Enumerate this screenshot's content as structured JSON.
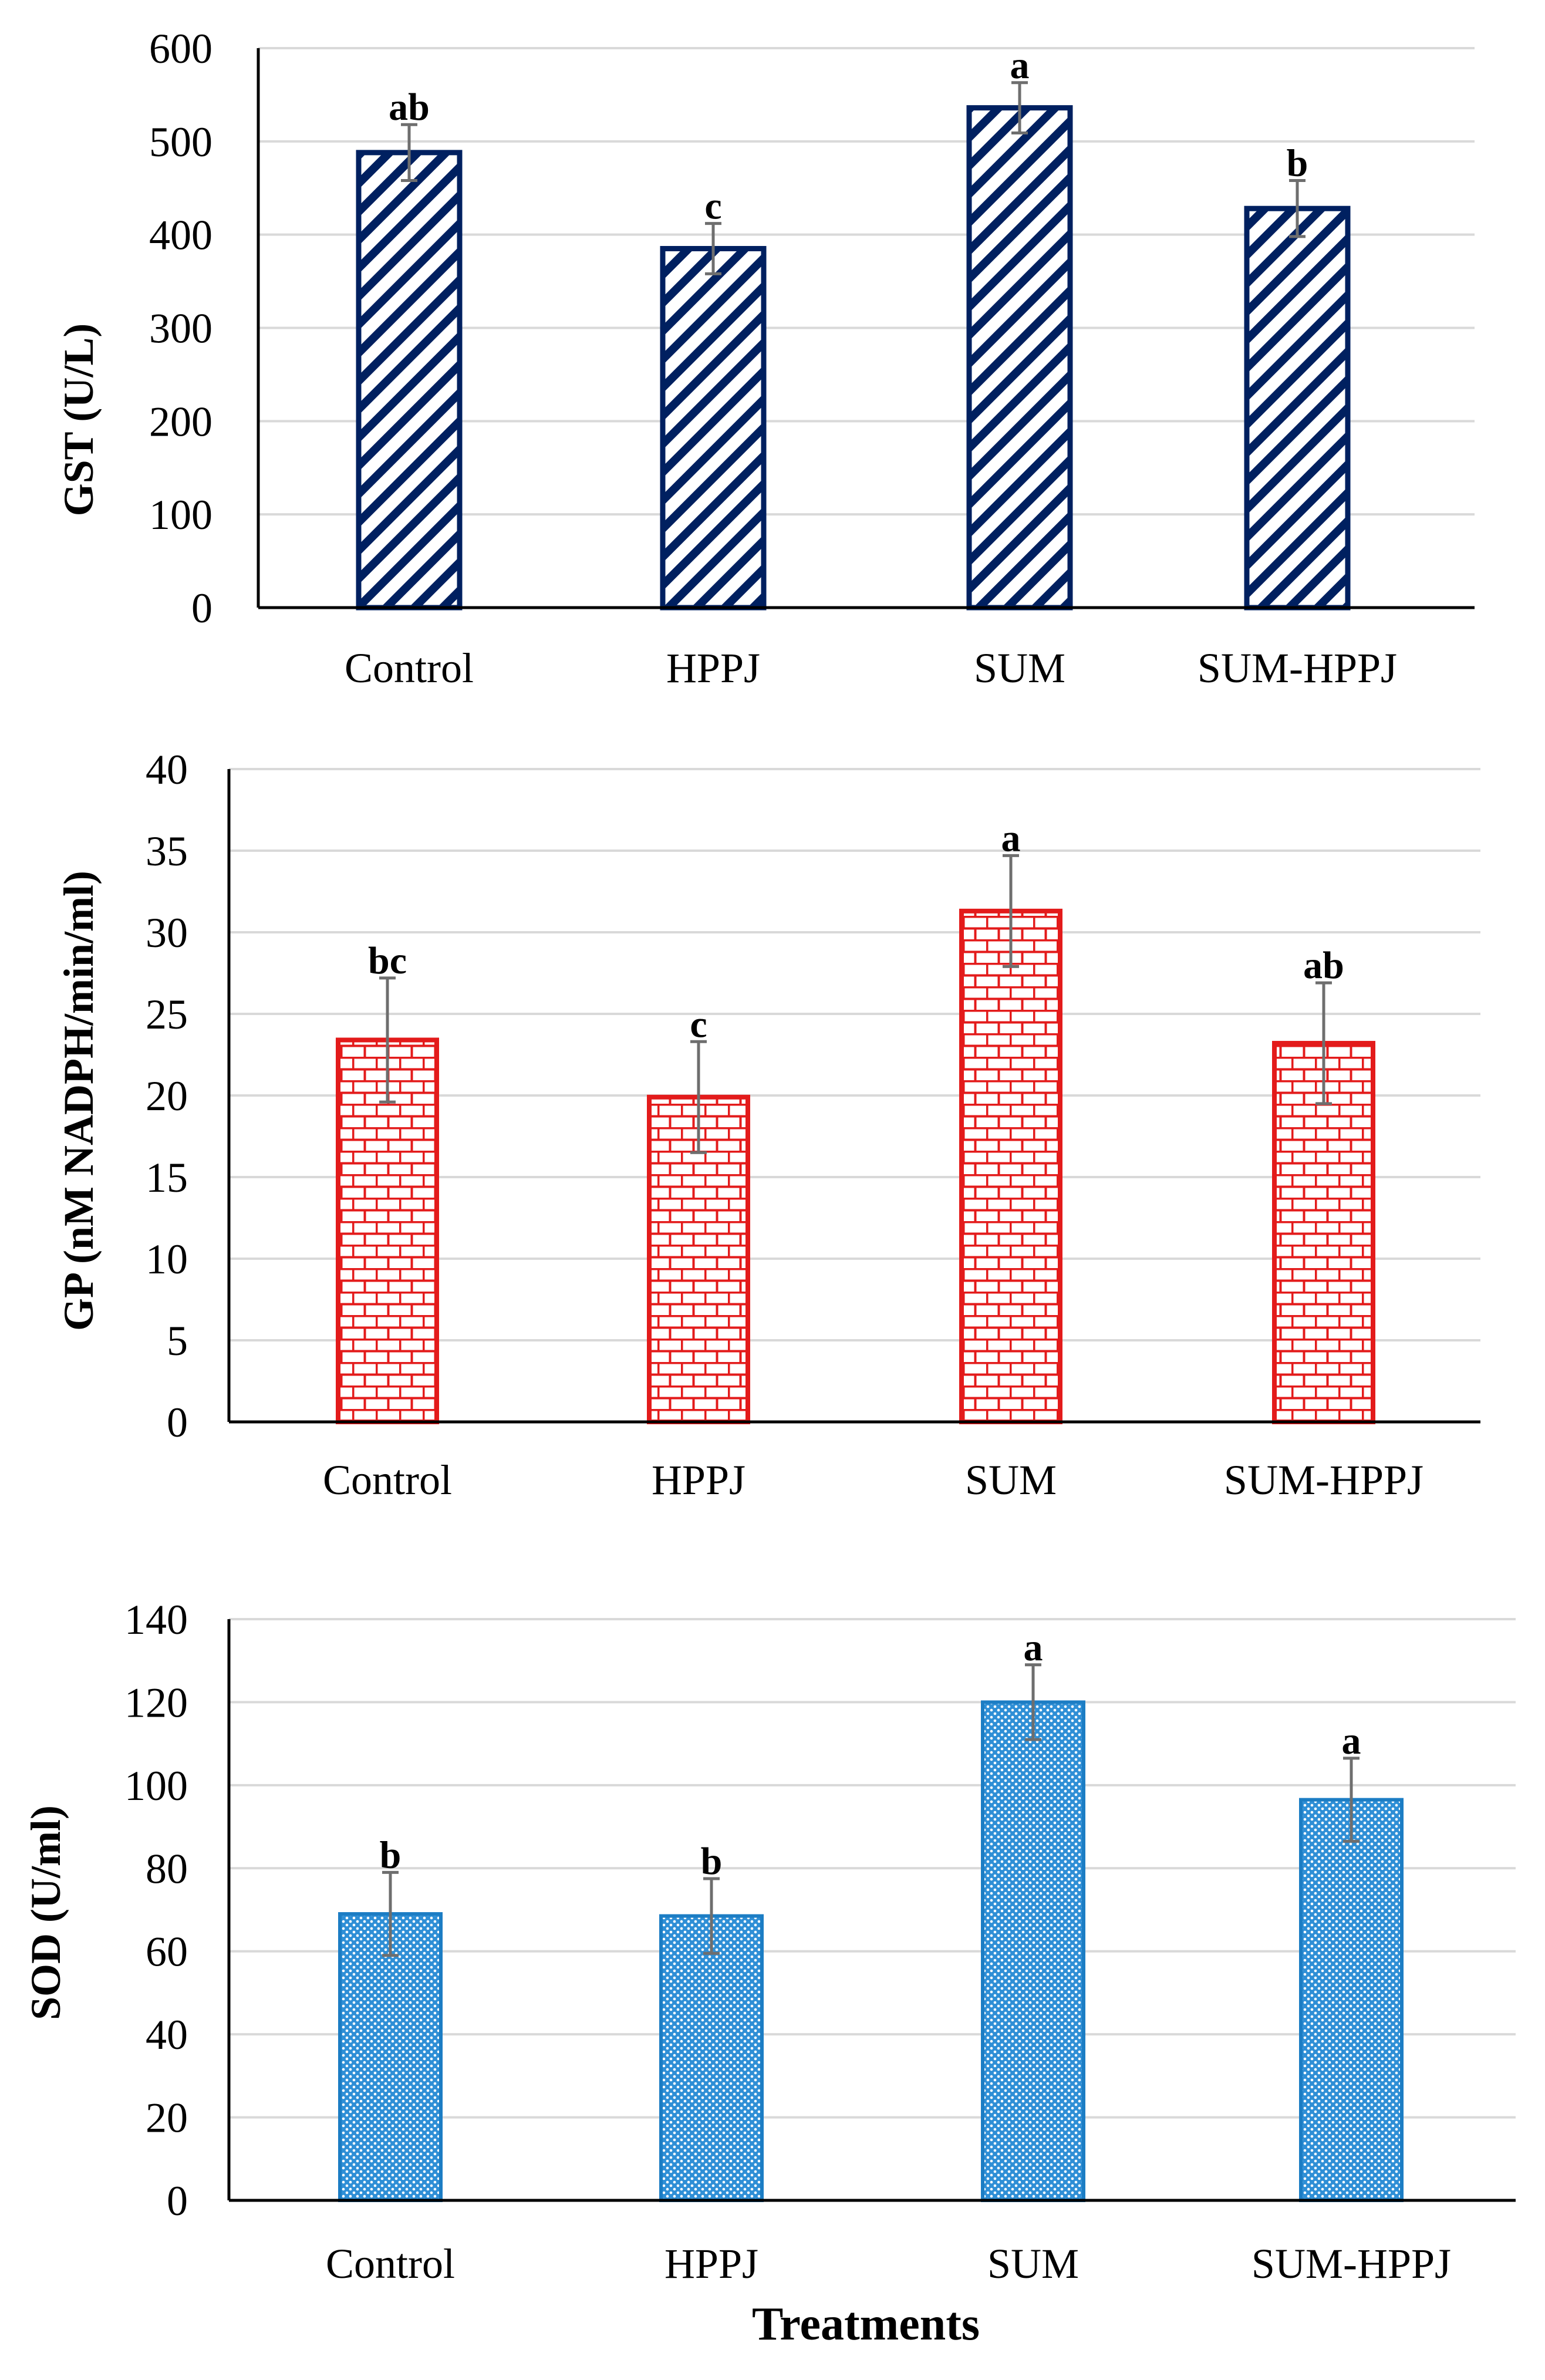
{
  "chart_data": [
    {
      "type": "bar",
      "title": "",
      "xlabel": "",
      "ylabel": "GST (U/L)",
      "categories": [
        "Control",
        "HPPJ",
        "SUM",
        "SUM-HPPJ"
      ],
      "values": [
        488,
        385,
        536,
        428
      ],
      "errors": [
        30,
        27,
        27,
        30
      ],
      "significance": [
        "ab",
        "c",
        "a",
        "b"
      ],
      "ylim": [
        0,
        600
      ],
      "yticks": [
        0,
        100,
        200,
        300,
        400,
        500,
        600
      ],
      "grid": true,
      "legend": "none",
      "color": "#002060",
      "pattern": "diagonal-stripes"
    },
    {
      "type": "bar",
      "title": "",
      "xlabel": "",
      "ylabel": "GP (nM NADPH/min/ml)",
      "categories": [
        "Control",
        "HPPJ",
        "SUM",
        "SUM-HPPJ"
      ],
      "values": [
        23.4,
        19.9,
        31.3,
        23.2
      ],
      "errors": [
        3.8,
        3.4,
        3.4,
        3.7
      ],
      "significance": [
        "bc",
        "c",
        "a",
        "ab"
      ],
      "ylim": [
        0,
        40
      ],
      "yticks": [
        0,
        5,
        10,
        15,
        20,
        25,
        30,
        35,
        40
      ],
      "grid": true,
      "legend": "none",
      "color": "#e31b1b",
      "pattern": "brick"
    },
    {
      "type": "bar",
      "title": "",
      "xlabel": "Treatments",
      "ylabel": "SOD (U/ml)",
      "categories": [
        "Control",
        "HPPJ",
        "SUM",
        "SUM-HPPJ"
      ],
      "values": [
        69,
        68.5,
        120,
        96.5
      ],
      "errors": [
        10,
        9,
        9,
        10
      ],
      "significance": [
        "b",
        "b",
        "a",
        "a"
      ],
      "ylim": [
        0,
        140
      ],
      "yticks": [
        0,
        20,
        40,
        60,
        80,
        100,
        120,
        140
      ],
      "grid": true,
      "legend": "none",
      "color": "#1c7dc4",
      "pattern": "dotted"
    }
  ]
}
